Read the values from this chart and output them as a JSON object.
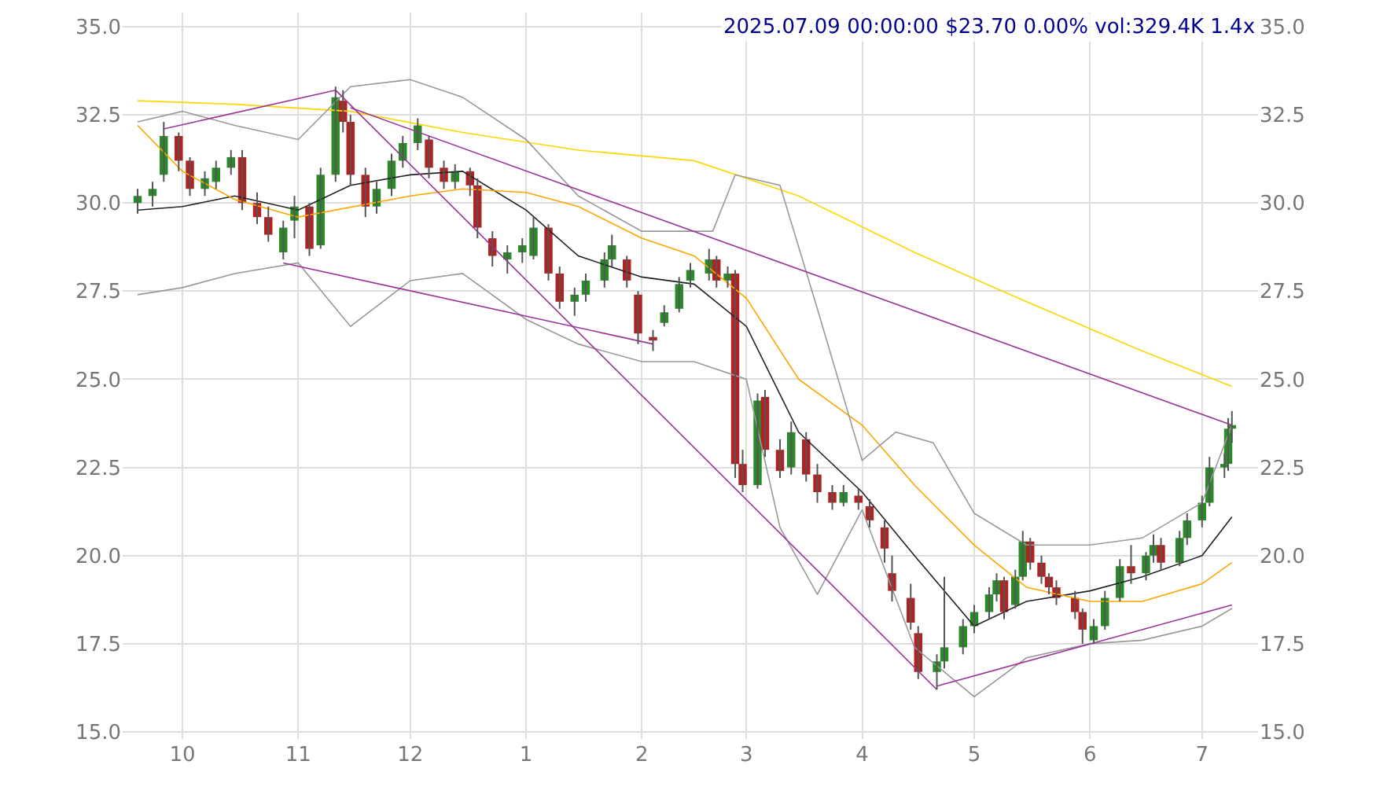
{
  "chart_data": {
    "type": "candlestick",
    "title": "2025.07.09 00:00:00 $23.70 0.00% vol:329.4K 1.4x",
    "x": [
      "2024-09-19",
      "2024-09-23",
      "2024-09-26",
      "2024-09-30",
      "2024-10-03",
      "2024-10-07",
      "2024-10-10",
      "2024-10-14",
      "2024-10-17",
      "2024-10-21",
      "2024-10-24",
      "2024-10-28",
      "2024-10-31",
      "2024-11-04",
      "2024-11-07",
      "2024-11-11",
      "2024-11-13",
      "2024-11-15",
      "2024-11-19",
      "2024-11-22",
      "2024-11-26",
      "2024-11-29",
      "2024-12-03",
      "2024-12-06",
      "2024-12-10",
      "2024-12-13",
      "2024-12-17",
      "2024-12-19",
      "2024-12-23",
      "2024-12-27",
      "2024-12-31",
      "2025-01-03",
      "2025-01-07",
      "2025-01-10",
      "2025-01-14",
      "2025-01-17",
      "2025-01-22",
      "2025-01-24",
      "2025-01-28",
      "2025-01-31",
      "2025-02-04",
      "2025-02-07",
      "2025-02-11",
      "2025-02-14",
      "2025-02-19",
      "2025-02-21",
      "2025-02-24",
      "2025-02-26",
      "2025-02-28",
      "2025-03-04",
      "2025-03-06",
      "2025-03-10",
      "2025-03-13",
      "2025-03-17",
      "2025-03-20",
      "2025-03-24",
      "2025-03-27",
      "2025-03-31",
      "2025-04-03",
      "2025-04-07",
      "2025-04-09",
      "2025-04-14",
      "2025-04-16",
      "2025-04-21",
      "2025-04-23",
      "2025-04-28",
      "2025-05-01",
      "2025-05-05",
      "2025-05-07",
      "2025-05-09",
      "2025-05-12",
      "2025-05-14",
      "2025-05-16",
      "2025-05-19",
      "2025-05-21",
      "2025-05-23",
      "2025-05-28",
      "2025-05-30",
      "2025-06-02",
      "2025-06-05",
      "2025-06-09",
      "2025-06-12",
      "2025-06-16",
      "2025-06-18",
      "2025-06-20",
      "2025-06-25",
      "2025-06-27",
      "2025-07-01",
      "2025-07-03",
      "2025-07-07",
      "2025-07-08",
      "2025-07-09"
    ],
    "ohlc": [
      [
        30.0,
        30.4,
        29.7,
        30.2
      ],
      [
        30.2,
        30.6,
        29.9,
        30.4
      ],
      [
        30.8,
        32.3,
        30.6,
        31.9
      ],
      [
        31.9,
        32.0,
        30.9,
        31.2
      ],
      [
        31.2,
        31.3,
        30.2,
        30.4
      ],
      [
        30.4,
        30.9,
        30.2,
        30.7
      ],
      [
        30.6,
        31.2,
        30.4,
        31.0
      ],
      [
        31.0,
        31.5,
        30.8,
        31.3
      ],
      [
        31.3,
        31.5,
        29.8,
        30.0
      ],
      [
        30.0,
        30.3,
        29.4,
        29.6
      ],
      [
        29.6,
        29.9,
        28.9,
        29.1
      ],
      [
        28.6,
        29.5,
        28.4,
        29.3
      ],
      [
        29.5,
        30.2,
        29.0,
        29.9
      ],
      [
        29.9,
        30.0,
        28.5,
        28.7
      ],
      [
        28.8,
        31.0,
        28.7,
        30.8
      ],
      [
        30.8,
        33.3,
        30.6,
        33.0
      ],
      [
        32.9,
        33.2,
        32.0,
        32.3
      ],
      [
        32.3,
        32.5,
        30.5,
        30.8
      ],
      [
        30.8,
        31.0,
        29.6,
        29.9
      ],
      [
        29.9,
        30.6,
        29.7,
        30.4
      ],
      [
        30.4,
        31.4,
        30.2,
        31.2
      ],
      [
        31.2,
        31.9,
        31.0,
        31.7
      ],
      [
        31.7,
        32.4,
        31.5,
        32.2
      ],
      [
        31.8,
        31.9,
        30.7,
        31.0
      ],
      [
        31.0,
        31.2,
        30.4,
        30.6
      ],
      [
        30.6,
        31.1,
        30.4,
        30.9
      ],
      [
        30.9,
        31.0,
        30.2,
        30.5
      ],
      [
        30.5,
        30.7,
        29.0,
        29.3
      ],
      [
        29.0,
        29.2,
        28.2,
        28.5
      ],
      [
        28.4,
        28.8,
        28.0,
        28.6
      ],
      [
        28.6,
        29.0,
        28.3,
        28.8
      ],
      [
        28.5,
        29.6,
        28.4,
        29.3
      ],
      [
        29.3,
        29.4,
        27.8,
        28.0
      ],
      [
        28.0,
        28.2,
        27.0,
        27.2
      ],
      [
        27.2,
        27.6,
        26.8,
        27.4
      ],
      [
        27.4,
        28.0,
        27.2,
        27.8
      ],
      [
        27.8,
        28.6,
        27.6,
        28.4
      ],
      [
        28.4,
        29.1,
        28.2,
        28.8
      ],
      [
        28.4,
        28.5,
        27.6,
        27.8
      ],
      [
        27.4,
        27.5,
        26.0,
        26.3
      ],
      [
        26.2,
        26.4,
        25.8,
        26.1
      ],
      [
        26.6,
        27.1,
        26.5,
        26.9
      ],
      [
        27.0,
        27.9,
        26.9,
        27.7
      ],
      [
        27.8,
        28.3,
        27.6,
        28.1
      ],
      [
        28.0,
        28.7,
        27.8,
        28.4
      ],
      [
        28.4,
        28.5,
        27.6,
        27.8
      ],
      [
        27.8,
        28.2,
        27.6,
        28.0
      ],
      [
        28.0,
        28.1,
        22.2,
        22.6
      ],
      [
        22.6,
        23.0,
        21.8,
        22.0
      ],
      [
        22.0,
        24.6,
        21.9,
        24.4
      ],
      [
        24.5,
        24.7,
        22.8,
        23.0
      ],
      [
        23.0,
        23.3,
        22.2,
        22.4
      ],
      [
        22.5,
        23.8,
        22.3,
        23.5
      ],
      [
        23.3,
        23.5,
        22.1,
        22.3
      ],
      [
        22.3,
        22.6,
        21.5,
        21.8
      ],
      [
        21.8,
        22.0,
        21.3,
        21.5
      ],
      [
        21.5,
        22.0,
        21.4,
        21.8
      ],
      [
        21.7,
        21.9,
        21.3,
        21.5
      ],
      [
        21.4,
        21.6,
        20.8,
        21.0
      ],
      [
        20.8,
        21.0,
        19.8,
        20.2
      ],
      [
        19.5,
        20.0,
        18.7,
        19.0
      ],
      [
        18.8,
        19.2,
        17.9,
        18.1
      ],
      [
        17.8,
        18.0,
        16.5,
        16.7
      ],
      [
        16.7,
        17.2,
        16.2,
        17.0
      ],
      [
        17.0,
        19.4,
        16.8,
        17.4
      ],
      [
        17.4,
        18.2,
        17.2,
        18.0
      ],
      [
        18.0,
        18.6,
        17.8,
        18.4
      ],
      [
        18.4,
        19.1,
        18.2,
        18.9
      ],
      [
        18.9,
        19.5,
        18.7,
        19.3
      ],
      [
        19.3,
        19.4,
        18.2,
        18.4
      ],
      [
        18.6,
        19.6,
        18.5,
        19.4
      ],
      [
        19.4,
        20.7,
        19.3,
        20.4
      ],
      [
        20.4,
        20.5,
        19.6,
        19.8
      ],
      [
        19.8,
        20.0,
        19.2,
        19.4
      ],
      [
        19.4,
        19.5,
        18.9,
        19.1
      ],
      [
        19.1,
        19.3,
        18.6,
        18.8
      ],
      [
        18.8,
        19.0,
        18.2,
        18.4
      ],
      [
        18.4,
        18.5,
        17.5,
        17.9
      ],
      [
        17.6,
        18.2,
        17.5,
        18.0
      ],
      [
        18.0,
        19.0,
        17.9,
        18.8
      ],
      [
        18.8,
        19.9,
        18.7,
        19.7
      ],
      [
        19.7,
        20.3,
        19.2,
        19.5
      ],
      [
        19.5,
        20.1,
        19.3,
        20.0
      ],
      [
        20.0,
        20.6,
        19.8,
        20.3
      ],
      [
        20.3,
        20.5,
        19.6,
        19.8
      ],
      [
        19.8,
        20.7,
        19.7,
        20.5
      ],
      [
        20.5,
        21.2,
        20.3,
        21.0
      ],
      [
        21.0,
        21.7,
        20.8,
        21.5
      ],
      [
        21.5,
        22.8,
        21.4,
        22.5
      ],
      [
        22.5,
        22.9,
        22.2,
        22.6
      ],
      [
        22.6,
        23.9,
        22.4,
        23.6
      ],
      [
        23.6,
        24.1,
        23.2,
        23.7
      ]
    ],
    "series": [
      {
        "type": "line",
        "color": "#222222",
        "x": [
          "2024-09-19",
          "2024-10-01",
          "2024-10-15",
          "2024-11-01",
          "2024-11-15",
          "2024-12-01",
          "2024-12-15",
          "2025-01-01",
          "2025-01-15",
          "2025-02-01",
          "2025-02-15",
          "2025-03-01",
          "2025-03-15",
          "2025-04-01",
          "2025-04-15",
          "2025-05-01",
          "2025-05-15",
          "2025-06-01",
          "2025-06-15",
          "2025-07-01",
          "2025-07-09"
        ],
        "values": [
          29.8,
          29.9,
          30.2,
          29.8,
          30.5,
          30.8,
          30.9,
          29.8,
          28.5,
          27.9,
          27.7,
          26.5,
          23.5,
          21.8,
          20.0,
          18.0,
          18.7,
          19.0,
          19.4,
          20.0,
          21.1
        ]
      },
      {
        "type": "line",
        "color": "#ffa500",
        "x": [
          "2024-09-19",
          "2024-10-01",
          "2024-10-15",
          "2024-11-01",
          "2024-12-01",
          "2024-12-15",
          "2025-01-01",
          "2025-01-15",
          "2025-02-01",
          "2025-02-15",
          "2025-03-01",
          "2025-03-15",
          "2025-04-01",
          "2025-04-15",
          "2025-05-01",
          "2025-05-15",
          "2025-06-01",
          "2025-06-15",
          "2025-07-01",
          "2025-07-09"
        ],
        "values": [
          32.2,
          30.9,
          30.1,
          29.6,
          30.2,
          30.4,
          30.3,
          29.9,
          29.0,
          28.5,
          27.3,
          25.0,
          23.7,
          22.0,
          20.3,
          19.1,
          18.7,
          18.7,
          19.2,
          19.8
        ]
      },
      {
        "type": "line",
        "color": "#ffd700",
        "x": [
          "2024-09-19",
          "2024-10-15",
          "2024-11-15",
          "2024-12-15",
          "2025-01-15",
          "2025-02-15",
          "2025-03-15",
          "2025-04-15",
          "2025-05-15",
          "2025-06-15",
          "2025-07-09"
        ],
        "values": [
          32.9,
          32.8,
          32.6,
          32.0,
          31.5,
          31.2,
          30.2,
          28.6,
          27.2,
          25.8,
          24.8
        ]
      },
      {
        "type": "line",
        "color": "#999999",
        "x": [
          "2024-09-19",
          "2024-10-01",
          "2024-10-15",
          "2024-11-01",
          "2024-11-15",
          "2024-12-01",
          "2024-12-15",
          "2025-01-01",
          "2025-01-15",
          "2025-02-01",
          "2025-02-20",
          "2025-02-26",
          "2025-03-10",
          "2025-03-20",
          "2025-04-01",
          "2025-04-10",
          "2025-04-20",
          "2025-05-01",
          "2025-05-15",
          "2025-06-01",
          "2025-06-15",
          "2025-07-01",
          "2025-07-09"
        ],
        "values": [
          32.3,
          32.6,
          32.2,
          31.8,
          33.3,
          33.5,
          33.0,
          31.8,
          30.2,
          29.2,
          29.2,
          30.8,
          30.5,
          27.0,
          22.7,
          23.5,
          23.2,
          21.2,
          20.3,
          20.3,
          20.5,
          21.5,
          23.7
        ]
      },
      {
        "type": "line",
        "color": "#999999",
        "x": [
          "2024-09-19",
          "2024-10-01",
          "2024-10-15",
          "2024-11-01",
          "2024-11-15",
          "2024-12-01",
          "2024-12-15",
          "2025-01-01",
          "2025-01-15",
          "2025-02-01",
          "2025-02-15",
          "2025-03-01",
          "2025-03-10",
          "2025-03-20",
          "2025-04-01",
          "2025-04-15",
          "2025-05-01",
          "2025-05-15",
          "2025-06-01",
          "2025-06-15",
          "2025-07-01",
          "2025-07-09"
        ],
        "values": [
          27.4,
          27.6,
          28.0,
          28.3,
          26.5,
          27.8,
          28.0,
          26.7,
          26.0,
          25.5,
          25.5,
          25.0,
          20.8,
          18.9,
          21.3,
          17.4,
          16.0,
          17.1,
          17.5,
          17.6,
          18.0,
          18.5
        ]
      },
      {
        "type": "line",
        "color": "#993399",
        "x": [
          "2024-09-26",
          "2024-11-11"
        ],
        "values": [
          32.1,
          33.2
        ]
      },
      {
        "type": "line",
        "color": "#993399",
        "x": [
          "2024-11-11",
          "2025-04-21"
        ],
        "values": [
          33.2,
          16.2
        ]
      },
      {
        "type": "line",
        "color": "#993399",
        "x": [
          "2024-11-15",
          "2025-07-09"
        ],
        "values": [
          32.7,
          23.7
        ]
      },
      {
        "type": "line",
        "color": "#993399",
        "x": [
          "2024-10-28",
          "2025-02-04"
        ],
        "values": [
          28.3,
          26.0
        ]
      },
      {
        "type": "line",
        "color": "#993399",
        "x": [
          "2025-04-21",
          "2025-07-09"
        ],
        "values": [
          16.3,
          18.6
        ]
      }
    ],
    "xlim": [
      "2024-09-15",
      "2025-07-16"
    ],
    "xticks": [
      {
        "value": "2024-10-01",
        "label": "10"
      },
      {
        "value": "2024-11-01",
        "label": "11"
      },
      {
        "value": "2024-12-01",
        "label": "12"
      },
      {
        "value": "2025-01-01",
        "label": "1"
      },
      {
        "value": "2025-02-01",
        "label": "2"
      },
      {
        "value": "2025-03-01",
        "label": "3"
      },
      {
        "value": "2025-04-01",
        "label": "4"
      },
      {
        "value": "2025-05-01",
        "label": "5"
      },
      {
        "value": "2025-06-01",
        "label": "6"
      },
      {
        "value": "2025-07-01",
        "label": "7"
      }
    ],
    "ylim": [
      14.8,
      35.4
    ],
    "yticks": [
      {
        "value": 15,
        "label": "15.0"
      },
      {
        "value": 17.5,
        "label": "17.5"
      },
      {
        "value": 20,
        "label": "20.0"
      },
      {
        "value": 22.5,
        "label": "22.5"
      },
      {
        "value": 25,
        "label": "25.0"
      },
      {
        "value": 27.5,
        "label": "27.5"
      },
      {
        "value": 30,
        "label": "30.0"
      },
      {
        "value": 32.5,
        "label": "32.5"
      },
      {
        "value": 35,
        "label": "35.0"
      }
    ],
    "y2lim": [
      14.8,
      35.4
    ],
    "y2ticks": [
      {
        "value": 15,
        "label": "15.0"
      },
      {
        "value": 17.5,
        "label": "17.5"
      },
      {
        "value": 20,
        "label": "20.0"
      },
      {
        "value": 22.5,
        "label": "22.5"
      },
      {
        "value": 25,
        "label": "25.0"
      },
      {
        "value": 27.5,
        "label": "27.5"
      },
      {
        "value": 30,
        "label": "30.0"
      },
      {
        "value": 32.5,
        "label": "32.5"
      },
      {
        "value": 35,
        "label": "35.0"
      }
    ],
    "grid": true
  }
}
